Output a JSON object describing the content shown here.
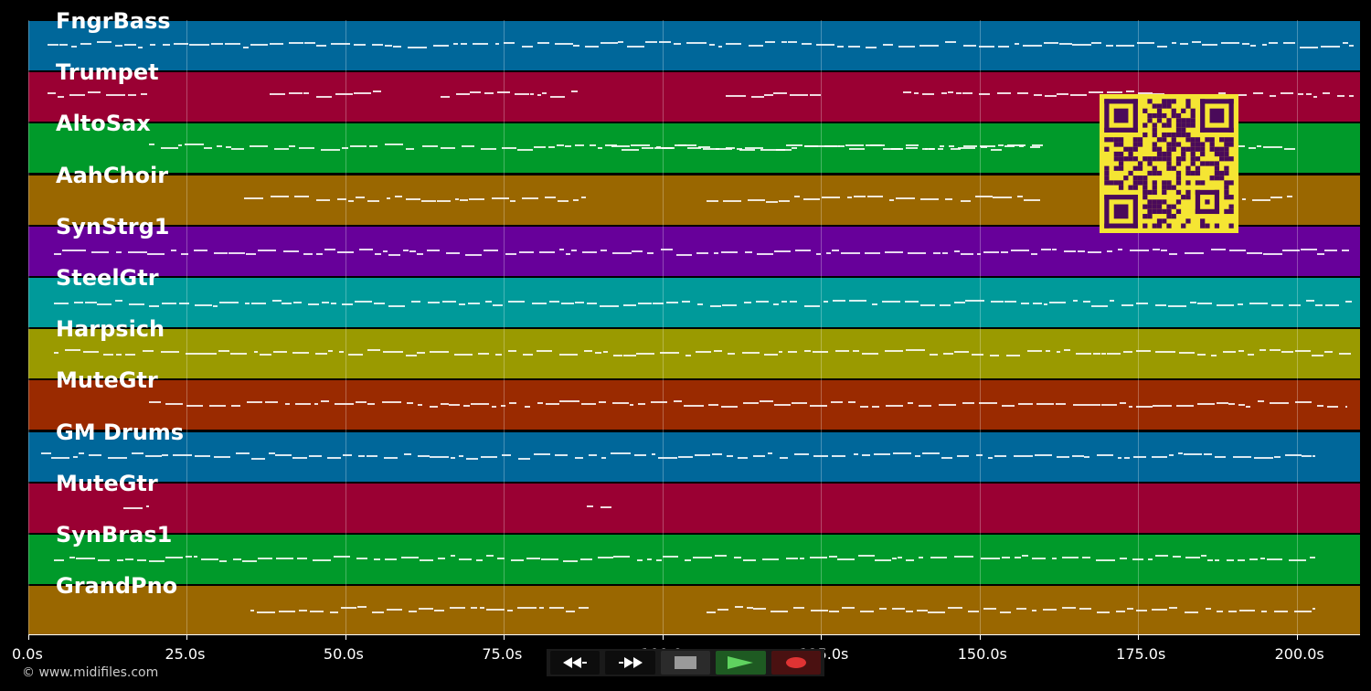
{
  "tracks": [
    {
      "name": "FngrBass",
      "color": "#00679a"
    },
    {
      "name": "Trumpet",
      "color": "#9a0033"
    },
    {
      "name": "AltoSax",
      "color": "#009a2a"
    },
    {
      "name": "AahChoir",
      "color": "#9a6700"
    },
    {
      "name": "SynStrg1",
      "color": "#67009a"
    },
    {
      "name": "SteelGtr",
      "color": "#009a9a"
    },
    {
      "name": "Harpsich",
      "color": "#9a9a00"
    },
    {
      "name": "MuteGtr",
      "color": "#9a2a00"
    },
    {
      "name": "GM Drums",
      "color": "#00679a"
    },
    {
      "name": "MuteGtr",
      "color": "#9a0033"
    },
    {
      "name": "SynBras1",
      "color": "#009a2a"
    },
    {
      "name": "GrandPno",
      "color": "#9a6700"
    }
  ],
  "time_axis": {
    "ticks": [
      "0.0s",
      "25.0s",
      "50.0s",
      "75.0s",
      "100.0s",
      "125.0s",
      "150.0s",
      "175.0s",
      "200.0s"
    ],
    "tick_values": [
      0,
      25,
      50,
      75,
      100,
      125,
      150,
      175,
      200
    ],
    "range_seconds": [
      0,
      210
    ]
  },
  "credit": "© www.midifiles.com",
  "transport": {
    "buttons": [
      "rewind-icon",
      "fast-forward-icon",
      "stop-icon",
      "play-icon",
      "record-icon"
    ]
  },
  "colors": {
    "background": "#000000",
    "qr_fg": "#4a0a5a",
    "qr_bg": "#f5e533",
    "play_icon": "#5fd35f",
    "record_icon": "#e03333"
  }
}
